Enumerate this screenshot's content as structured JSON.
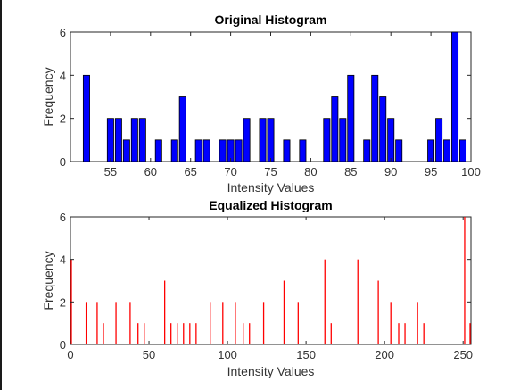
{
  "chart_data": [
    {
      "type": "bar",
      "title": "Original Histogram",
      "xlabel": "Intensity Values",
      "ylabel": "Frequency",
      "xlim": [
        50,
        100
      ],
      "ylim": [
        0,
        6
      ],
      "xticks": [
        55,
        60,
        65,
        70,
        75,
        80,
        85,
        90,
        95,
        100
      ],
      "yticks": [
        0,
        2,
        4,
        6
      ],
      "grid": false,
      "bar_color": "#0000ff",
      "edge_color": "#000000",
      "x": [
        52,
        55,
        56,
        57,
        58,
        59,
        61,
        63,
        64,
        66,
        67,
        69,
        70,
        71,
        72,
        74,
        75,
        77,
        79,
        82,
        83,
        84,
        85,
        87,
        88,
        89,
        90,
        91,
        95,
        96,
        97,
        98,
        99
      ],
      "values": [
        4,
        2,
        2,
        1,
        2,
        2,
        1,
        1,
        3,
        1,
        1,
        1,
        1,
        1,
        2,
        2,
        2,
        1,
        1,
        2,
        3,
        2,
        4,
        1,
        4,
        3,
        2,
        1,
        1,
        2,
        1,
        6,
        1
      ]
    },
    {
      "type": "bar",
      "title": "Equalized Histogram",
      "xlabel": "Intensity Values",
      "ylabel": "Frequency",
      "xlim": [
        0,
        255
      ],
      "ylim": [
        0,
        6
      ],
      "xticks": [
        0,
        50,
        100,
        150,
        200,
        250
      ],
      "yticks": [
        0,
        2,
        4,
        6
      ],
      "grid": false,
      "bar_color": "#ff0000",
      "x": [
        0,
        10,
        17,
        21,
        29,
        38,
        43,
        47,
        60,
        64,
        68,
        72,
        76,
        80,
        89,
        97,
        105,
        110,
        114,
        123,
        136,
        145,
        162,
        166,
        183,
        196,
        204,
        209,
        213,
        221,
        225,
        251,
        255
      ],
      "values": [
        4,
        2,
        2,
        1,
        2,
        2,
        1,
        1,
        3,
        1,
        1,
        1,
        1,
        1,
        2,
        2,
        2,
        1,
        1,
        2,
        3,
        2,
        4,
        1,
        4,
        3,
        2,
        1,
        1,
        2,
        1,
        6,
        1
      ]
    }
  ]
}
